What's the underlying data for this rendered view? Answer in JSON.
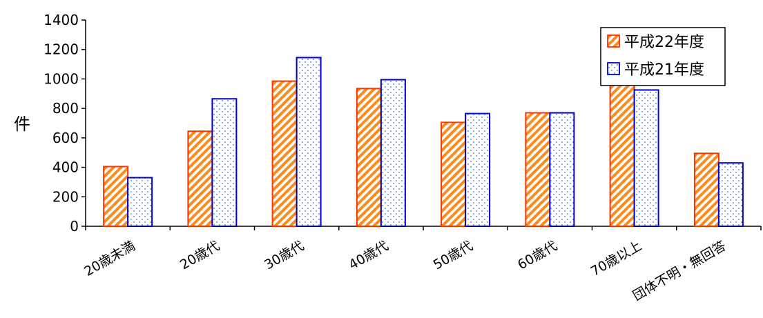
{
  "chart_data": {
    "type": "bar",
    "ylabel": "件",
    "ylim": [
      0,
      1400
    ],
    "yticks": [
      0,
      200,
      400,
      600,
      800,
      1000,
      1200,
      1400
    ],
    "grid": false,
    "legend_position": "top-right",
    "categories": [
      "20歳未満",
      "20歳代",
      "30歳代",
      "40歳代",
      "50歳代",
      "60歳代",
      "70歳以上",
      "団体不明・無回答"
    ],
    "series": [
      {
        "name": "平成22年度",
        "values": [
          405,
          645,
          985,
          935,
          705,
          770,
          1005,
          495
        ],
        "color": "#ff3300",
        "pattern": "diagonal-stripes-orange"
      },
      {
        "name": "平成21年度",
        "values": [
          330,
          865,
          1145,
          995,
          765,
          770,
          925,
          430
        ],
        "color": "#0000cc",
        "pattern": "dotted-blue"
      }
    ]
  }
}
